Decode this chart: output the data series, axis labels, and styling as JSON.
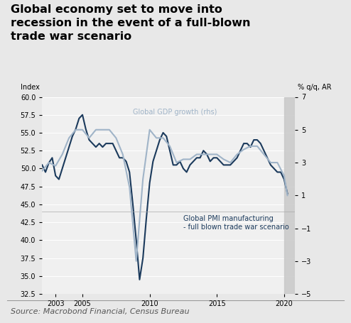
{
  "title": "Global economy set to move into\nrecession in the event of a full-blown\ntrade war scenario",
  "source": "Source: Macrobond Financial, Census Bureau",
  "bg_color": "#e8e8e8",
  "plot_bg_color": "#f0f0f0",
  "pmi_color": "#1b3a5c",
  "gdp_color": "#a0b4c8",
  "forecast_bg": "#c8c8c8",
  "forecast_start": 2020.0,
  "ylim_left": [
    32.5,
    60.0
  ],
  "ylim_right": [
    -5,
    7
  ],
  "yticks_left": [
    32.5,
    35.0,
    37.5,
    40.0,
    42.5,
    45.0,
    47.5,
    50.0,
    52.5,
    55.0,
    57.5,
    60.0
  ],
  "yticks_right": [
    -5,
    -3,
    -1,
    1,
    3,
    5,
    7
  ],
  "xlabel_ticks": [
    2003,
    2005,
    2010,
    2015,
    2020
  ],
  "left_label": "Index",
  "right_label": "% q/q, AR",
  "gdp_label": "Global GDP growth (rhs)",
  "pmi_label": "Global PMI manufacturing\n- full blown trade war scenario",
  "pmi_data": {
    "dates": [
      2002.0,
      2002.25,
      2002.5,
      2002.75,
      2003.0,
      2003.25,
      2003.5,
      2003.75,
      2004.0,
      2004.25,
      2004.5,
      2004.75,
      2005.0,
      2005.25,
      2005.5,
      2005.75,
      2006.0,
      2006.25,
      2006.5,
      2006.75,
      2007.0,
      2007.25,
      2007.5,
      2007.75,
      2008.0,
      2008.25,
      2008.5,
      2008.75,
      2009.0,
      2009.25,
      2009.5,
      2009.75,
      2010.0,
      2010.25,
      2010.5,
      2010.75,
      2011.0,
      2011.25,
      2011.5,
      2011.75,
      2012.0,
      2012.25,
      2012.5,
      2012.75,
      2013.0,
      2013.25,
      2013.5,
      2013.75,
      2014.0,
      2014.25,
      2014.5,
      2014.75,
      2015.0,
      2015.25,
      2015.5,
      2015.75,
      2016.0,
      2016.25,
      2016.5,
      2016.75,
      2017.0,
      2017.25,
      2017.5,
      2017.75,
      2018.0,
      2018.25,
      2018.5,
      2018.75,
      2019.0,
      2019.25,
      2019.5,
      2019.75,
      2020.0,
      2020.25
    ],
    "values": [
      50.5,
      49.5,
      50.8,
      51.5,
      49.0,
      48.5,
      50.0,
      51.5,
      53.0,
      54.5,
      55.5,
      57.0,
      57.5,
      55.5,
      54.0,
      53.5,
      53.0,
      53.5,
      53.0,
      53.5,
      53.5,
      53.5,
      52.5,
      51.5,
      51.5,
      51.0,
      49.5,
      45.0,
      40.0,
      34.5,
      37.5,
      43.0,
      48.0,
      51.0,
      52.5,
      54.0,
      55.0,
      54.5,
      52.5,
      50.5,
      50.5,
      51.0,
      50.0,
      49.5,
      50.5,
      51.0,
      51.5,
      51.5,
      52.5,
      52.0,
      51.0,
      51.5,
      51.5,
      51.0,
      50.5,
      50.5,
      50.5,
      51.0,
      51.5,
      52.5,
      53.5,
      53.5,
      53.0,
      54.0,
      54.0,
      53.5,
      52.5,
      51.5,
      50.5,
      50.0,
      49.5,
      49.5,
      48.5,
      46.5
    ]
  },
  "gdp_data": {
    "dates": [
      2002.0,
      2002.5,
      2003.0,
      2003.5,
      2004.0,
      2004.5,
      2005.0,
      2005.5,
      2006.0,
      2006.5,
      2007.0,
      2007.5,
      2008.0,
      2008.5,
      2009.0,
      2009.5,
      2010.0,
      2010.5,
      2011.0,
      2011.5,
      2012.0,
      2012.5,
      2013.0,
      2013.5,
      2014.0,
      2014.5,
      2015.0,
      2015.5,
      2016.0,
      2016.5,
      2017.0,
      2017.5,
      2018.0,
      2018.5,
      2019.0,
      2019.5,
      2020.0,
      2020.25
    ],
    "values": [
      2.5,
      3.0,
      2.8,
      3.5,
      4.5,
      5.0,
      5.0,
      4.5,
      5.0,
      5.0,
      5.0,
      4.5,
      3.5,
      1.5,
      -3.0,
      2.0,
      5.0,
      4.5,
      4.5,
      4.0,
      3.0,
      3.2,
      3.2,
      3.5,
      3.5,
      3.5,
      3.5,
      3.2,
      3.0,
      3.5,
      3.8,
      4.0,
      4.0,
      3.5,
      3.0,
      3.0,
      2.2,
      1.0
    ]
  }
}
